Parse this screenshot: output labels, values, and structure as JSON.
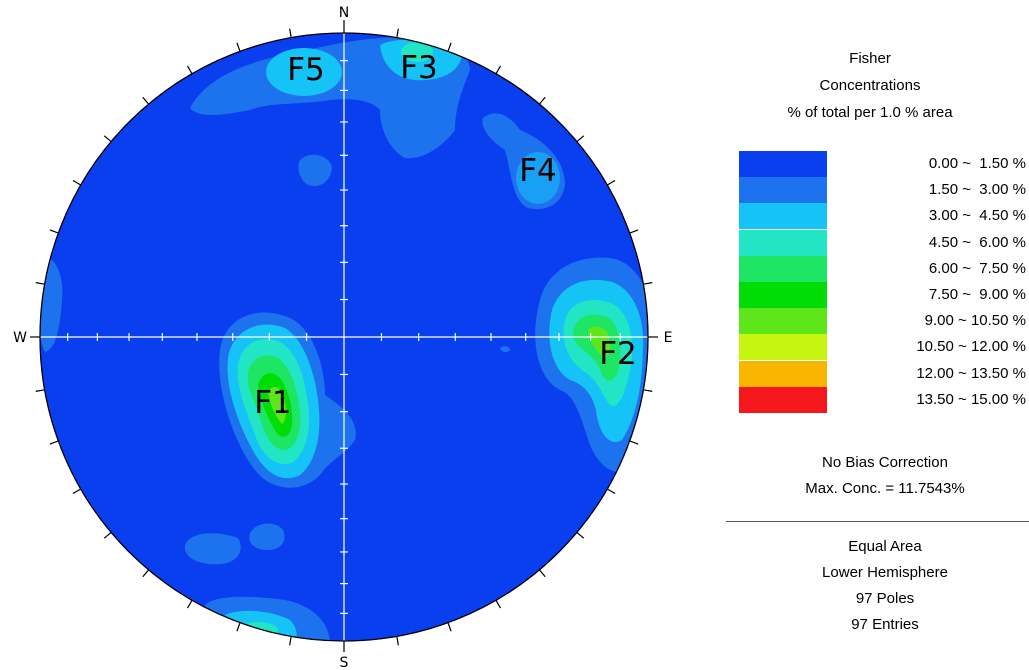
{
  "stereonet": {
    "directions": {
      "north": "N",
      "south": "S",
      "east": "E",
      "west": "W"
    },
    "features": [
      {
        "label": "F1"
      },
      {
        "label": "F2"
      },
      {
        "label": "F3"
      },
      {
        "label": "F4"
      },
      {
        "label": "F5"
      }
    ],
    "colors": {
      "background_class": "#0a3ff0",
      "outline": "#000000",
      "crosshair": "#ffffff"
    }
  },
  "legend": {
    "title_lines": [
      "Fisher",
      "Concentrations",
      "% of total per 1.0 % area"
    ],
    "classes": [
      {
        "range": "0.00 ~  1.50 %",
        "color": "#0a3ff0"
      },
      {
        "range": "1.50 ~  3.00 %",
        "color": "#1d73ee"
      },
      {
        "range": "3.00 ~  4.50 %",
        "color": "#16c3f7"
      },
      {
        "range": "4.50 ~  6.00 %",
        "color": "#22e5c6"
      },
      {
        "range": "6.00 ~  7.50 %",
        "color": "#1ee664"
      },
      {
        "range": "7.50 ~  9.00 %",
        "color": "#00dd05"
      },
      {
        "range": "9.00 ~ 10.50 %",
        "color": "#5ee61a"
      },
      {
        "range": "10.50 ~ 12.00 %",
        "color": "#c5f510"
      },
      {
        "range": "12.00 ~ 13.50 %",
        "color": "#f8b600"
      },
      {
        "range": "13.50 ~ 15.00 %",
        "color": "#f4171b"
      }
    ],
    "correction": "No Bias Correction",
    "max_conc": "Max. Conc. = 11.7543%",
    "projection": "Equal Area",
    "hemisphere": "Lower Hemisphere",
    "poles": "97 Poles",
    "entries": "97 Entries"
  }
}
